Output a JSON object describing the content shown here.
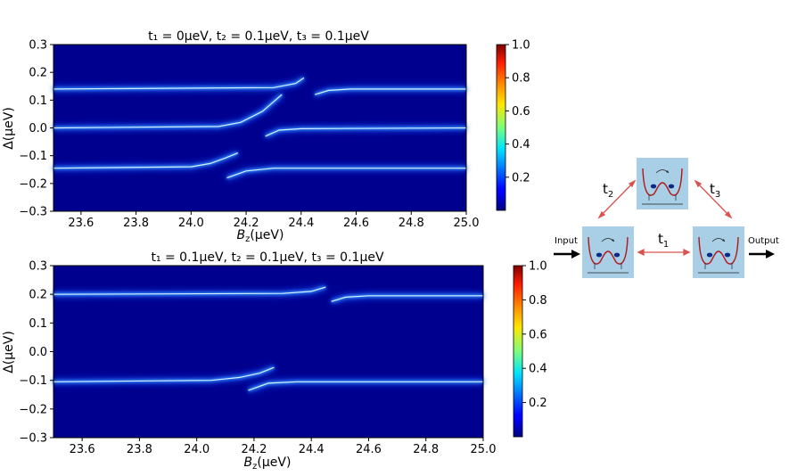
{
  "chart_data": [
    {
      "type": "heatmap",
      "title": "t₁ = 0μeV,  t₂ = 0.1μeV,  t₃ = 0.1μeV",
      "xlabel": "B_z(μeV)",
      "ylabel": "Δ(μeV)",
      "xlim": [
        23.5,
        25.0
      ],
      "ylim": [
        -0.3,
        0.3
      ],
      "xticks": [
        23.6,
        23.8,
        24.0,
        24.2,
        24.4,
        24.6,
        24.8,
        25.0
      ],
      "xtick_labels": [
        "23.6",
        "23.8",
        "24.0",
        "24.2",
        "24.4",
        "24.6",
        "24.8",
        "25.0"
      ],
      "yticks": [
        0.3,
        0.2,
        0.1,
        0.0,
        -0.1,
        -0.2,
        -0.3
      ],
      "ytick_labels": [
        "0.3",
        "0.2",
        "0.1",
        "0.0",
        "−0.1",
        "−0.2",
        "−0.3"
      ],
      "colorbar": {
        "range": [
          0.0,
          1.0
        ],
        "ticks": [
          "1.0",
          "0.8",
          "0.6",
          "0.4",
          "0.2"
        ],
        "colormap": "jet"
      },
      "series": [
        {
          "x": [
            23.5,
            24.3,
            24.38,
            24.41
          ],
          "y": [
            0.14,
            0.145,
            0.16,
            0.18
          ]
        },
        {
          "x": [
            24.45,
            24.5,
            24.58,
            25.0
          ],
          "y": [
            0.12,
            0.135,
            0.14,
            0.14
          ]
        },
        {
          "x": [
            23.5,
            24.1,
            24.18,
            24.26,
            24.33
          ],
          "y": [
            0.0,
            0.005,
            0.02,
            0.06,
            0.12
          ]
        },
        {
          "x": [
            24.27,
            24.32,
            24.4,
            25.0
          ],
          "y": [
            -0.03,
            -0.008,
            -0.003,
            0.0
          ]
        },
        {
          "x": [
            23.5,
            24.0,
            24.07,
            24.12,
            24.17
          ],
          "y": [
            -0.145,
            -0.14,
            -0.128,
            -0.11,
            -0.09
          ]
        },
        {
          "x": [
            24.13,
            24.2,
            24.3,
            25.0
          ],
          "y": [
            -0.18,
            -0.155,
            -0.145,
            -0.145
          ]
        }
      ]
    },
    {
      "type": "heatmap",
      "title": "t₁ = 0.1μeV,  t₂ = 0.1μeV,  t₃ = 0.1μeV",
      "xlabel": "B_z(μeV)",
      "ylabel": "Δ(μeV)",
      "xlim": [
        23.5,
        25.0
      ],
      "ylim": [
        -0.3,
        0.3
      ],
      "xticks": [
        23.6,
        23.8,
        24.0,
        24.2,
        24.4,
        24.6,
        24.8,
        25.0
      ],
      "xtick_labels": [
        "23.6",
        "23.8",
        "24.0",
        "24.2",
        "24.4",
        "24.6",
        "24.8",
        "25.0"
      ],
      "yticks": [
        0.3,
        0.2,
        0.1,
        0.0,
        -0.1,
        -0.2,
        -0.3
      ],
      "ytick_labels": [
        "0.3",
        "0.2",
        "0.1",
        "0.0",
        "−0.1",
        "−0.2",
        "−0.3"
      ],
      "colorbar": {
        "range": [
          0.0,
          1.0
        ],
        "ticks": [
          "1.0",
          "0.8",
          "0.6",
          "0.4",
          "0.2"
        ],
        "colormap": "jet"
      },
      "series": [
        {
          "x": [
            23.5,
            24.3,
            24.4,
            24.45
          ],
          "y": [
            0.2,
            0.203,
            0.21,
            0.225
          ]
        },
        {
          "x": [
            24.47,
            24.52,
            24.6,
            25.0
          ],
          "y": [
            0.175,
            0.19,
            0.195,
            0.195
          ]
        },
        {
          "x": [
            23.5,
            24.05,
            24.15,
            24.22,
            24.27
          ],
          "y": [
            -0.105,
            -0.1,
            -0.09,
            -0.075,
            -0.055
          ]
        },
        {
          "x": [
            24.18,
            24.25,
            24.35,
            25.0
          ],
          "y": [
            -0.135,
            -0.11,
            -0.105,
            -0.105
          ]
        }
      ]
    }
  ],
  "diagram": {
    "labels": {
      "t1": "t",
      "t1_sub": "1",
      "t2": "t",
      "t2_sub": "2",
      "t3": "t",
      "t3_sub": "3",
      "input": "Input",
      "output": "Output"
    }
  }
}
